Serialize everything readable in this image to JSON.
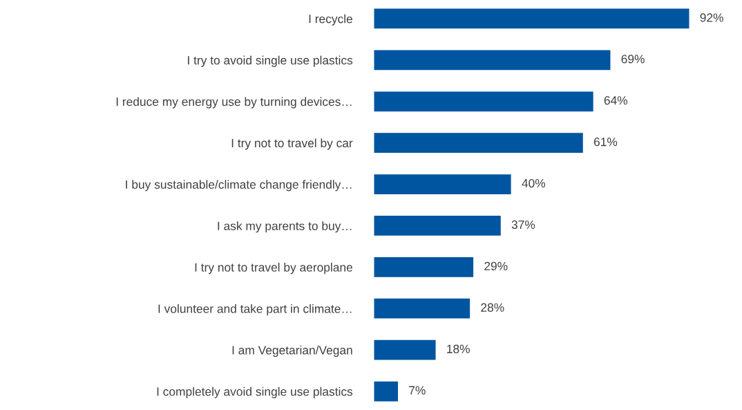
{
  "chart_data": {
    "type": "bar",
    "orientation": "horizontal",
    "categories": [
      "I recycle",
      "I try to avoid single use plastics",
      "I reduce my energy use by turning devices…",
      "I try not to travel by car",
      "I buy sustainable/climate change friendly…",
      "I ask my parents to buy…",
      "I try not to travel by aeroplane",
      "I volunteer and take part in climate…",
      "I am Vegetarian/Vegan",
      "I completely avoid single use plastics"
    ],
    "values": [
      92,
      69,
      64,
      61,
      40,
      37,
      29,
      28,
      18,
      7
    ],
    "value_labels": [
      "92%",
      "69%",
      "64%",
      "61%",
      "40%",
      "37%",
      "29%",
      "28%",
      "18%",
      "7%"
    ],
    "color": "#0055a0",
    "grid": false,
    "legend": false,
    "tick_labels": "y"
  }
}
